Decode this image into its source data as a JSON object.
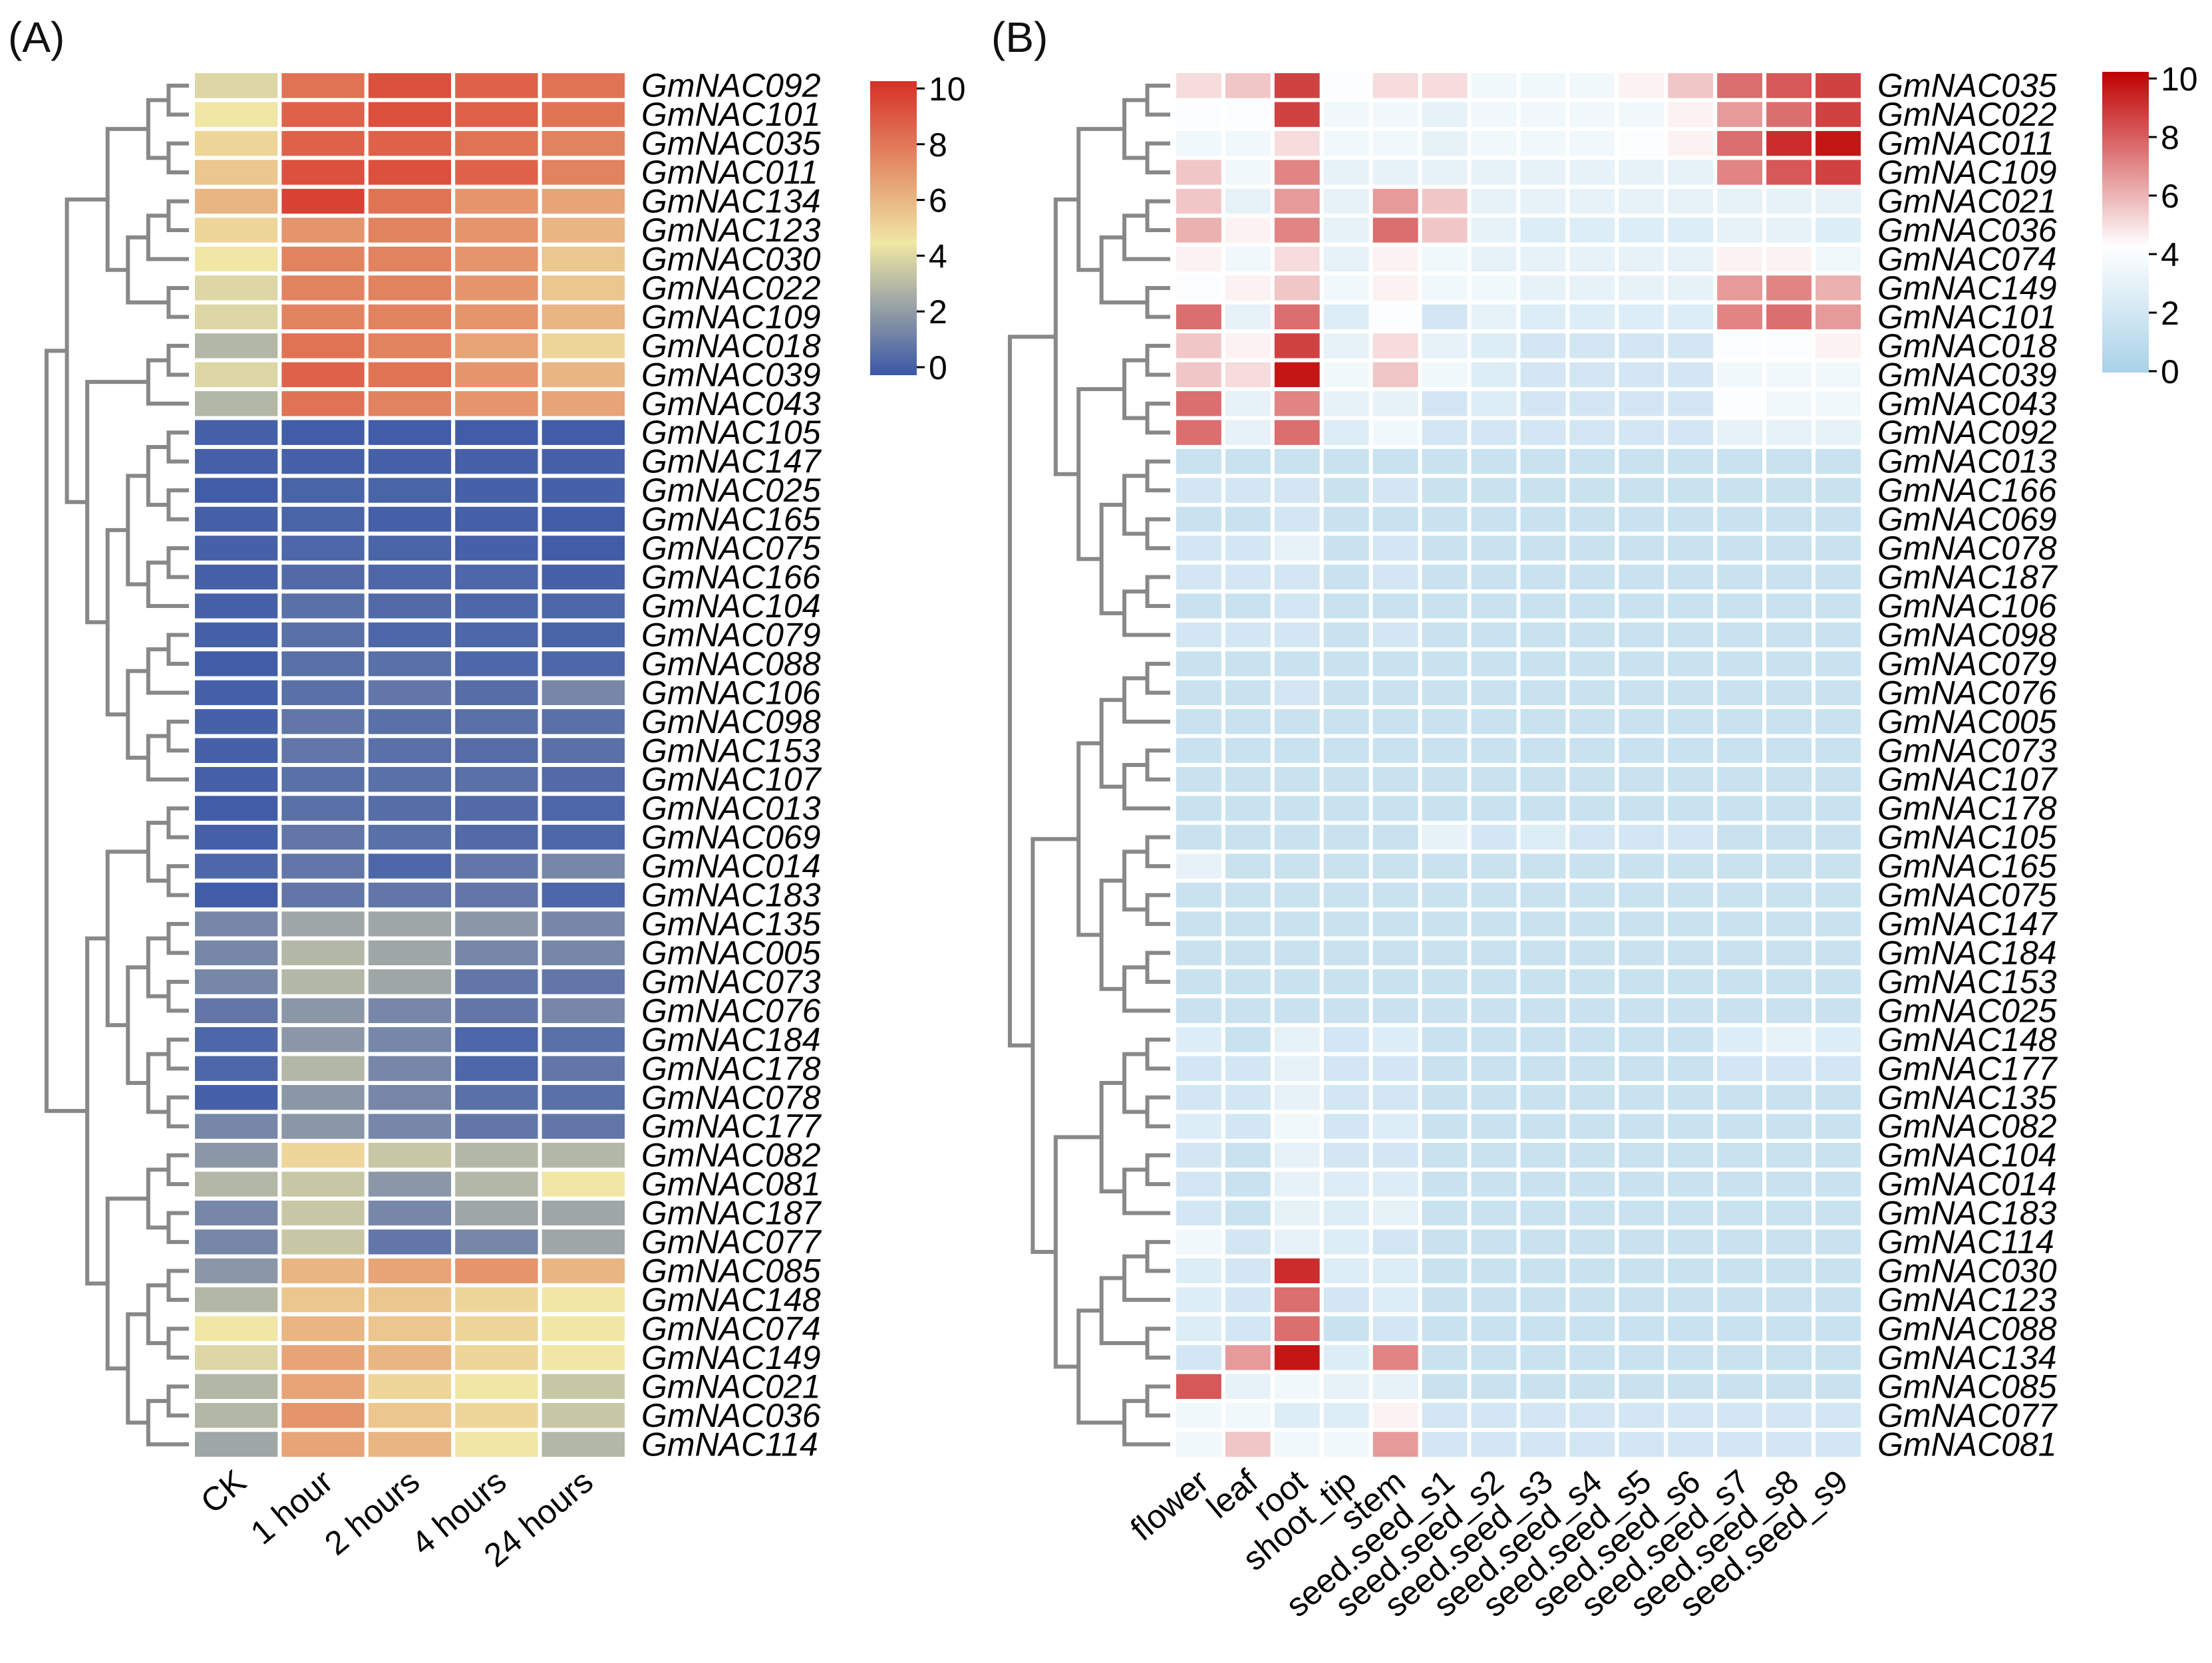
{
  "chart_data": [
    {
      "panel_label": "(A)",
      "type": "heatmap",
      "columns": [
        "CK",
        "1 hour",
        "2 hours",
        "4 hours",
        "24 hours"
      ],
      "rows": [
        "GmNAC092",
        "GmNAC101",
        "GmNAC035",
        "GmNAC011",
        "GmNAC134",
        "GmNAC123",
        "GmNAC030",
        "GmNAC022",
        "GmNAC109",
        "GmNAC018",
        "GmNAC039",
        "GmNAC043",
        "GmNAC105",
        "GmNAC147",
        "GmNAC025",
        "GmNAC165",
        "GmNAC075",
        "GmNAC166",
        "GmNAC104",
        "GmNAC079",
        "GmNAC088",
        "GmNAC106",
        "GmNAC098",
        "GmNAC153",
        "GmNAC107",
        "GmNAC013",
        "GmNAC069",
        "GmNAC014",
        "GmNAC183",
        "GmNAC135",
        "GmNAC005",
        "GmNAC073",
        "GmNAC076",
        "GmNAC184",
        "GmNAC178",
        "GmNAC078",
        "GmNAC177",
        "GmNAC082",
        "GmNAC081",
        "GmNAC187",
        "GmNAC077",
        "GmNAC085",
        "GmNAC148",
        "GmNAC074",
        "GmNAC149",
        "GmNAC021",
        "GmNAC036",
        "GmNAC114"
      ],
      "values": [
        [
          4.0,
          8.0,
          9.0,
          8.5,
          8.0
        ],
        [
          4.5,
          8.5,
          9.0,
          8.5,
          8.0
        ],
        [
          5.0,
          8.5,
          8.5,
          8.0,
          7.5
        ],
        [
          5.5,
          9.0,
          9.0,
          8.5,
          7.5
        ],
        [
          6.0,
          9.5,
          8.0,
          7.0,
          6.5
        ],
        [
          5.0,
          7.0,
          7.5,
          7.0,
          6.0
        ],
        [
          4.5,
          7.5,
          7.5,
          7.0,
          5.5
        ],
        [
          4.0,
          7.5,
          7.5,
          7.0,
          5.5
        ],
        [
          4.0,
          7.5,
          7.5,
          7.0,
          6.0
        ],
        [
          3.0,
          8.0,
          7.5,
          6.5,
          5.0
        ],
        [
          4.0,
          8.5,
          8.0,
          7.0,
          6.0
        ],
        [
          3.0,
          8.0,
          7.5,
          7.0,
          6.5
        ],
        [
          0.3,
          0.2,
          0.2,
          0.2,
          0.2
        ],
        [
          0.3,
          0.3,
          0.3,
          0.3,
          0.3
        ],
        [
          0.2,
          0.4,
          0.4,
          0.3,
          0.3
        ],
        [
          0.3,
          0.4,
          0.3,
          0.3,
          0.2
        ],
        [
          0.3,
          0.5,
          0.4,
          0.3,
          0.2
        ],
        [
          0.3,
          0.6,
          0.5,
          0.5,
          0.3
        ],
        [
          0.3,
          0.8,
          0.6,
          0.5,
          0.5
        ],
        [
          0.3,
          0.8,
          0.5,
          0.5,
          0.4
        ],
        [
          0.2,
          0.8,
          0.8,
          0.5,
          0.5
        ],
        [
          0.3,
          0.8,
          1.0,
          0.7,
          1.5
        ],
        [
          0.3,
          1.0,
          0.8,
          0.8,
          0.8
        ],
        [
          0.3,
          1.0,
          0.8,
          0.7,
          0.8
        ],
        [
          0.3,
          0.8,
          0.8,
          0.8,
          0.6
        ],
        [
          0.2,
          0.8,
          0.7,
          0.6,
          0.5
        ],
        [
          0.3,
          1.0,
          0.8,
          0.6,
          0.5
        ],
        [
          0.5,
          1.0,
          0.5,
          1.0,
          1.5
        ],
        [
          0.2,
          1.0,
          1.0,
          1.0,
          0.5
        ],
        [
          1.5,
          2.5,
          2.5,
          2.0,
          1.5
        ],
        [
          1.5,
          3.0,
          2.5,
          1.5,
          1.5
        ],
        [
          1.5,
          3.0,
          2.5,
          1.0,
          1.0
        ],
        [
          1.0,
          2.0,
          1.5,
          1.0,
          1.5
        ],
        [
          0.5,
          2.0,
          1.5,
          0.5,
          0.8
        ],
        [
          0.5,
          3.0,
          1.5,
          0.5,
          1.0
        ],
        [
          0.3,
          2.0,
          1.5,
          0.8,
          0.8
        ],
        [
          1.5,
          2.0,
          1.5,
          1.0,
          1.0
        ],
        [
          2.0,
          5.0,
          3.5,
          3.0,
          3.0
        ],
        [
          3.0,
          3.5,
          2.0,
          3.0,
          4.5
        ],
        [
          1.5,
          3.5,
          1.5,
          2.5,
          2.5
        ],
        [
          1.5,
          3.5,
          1.0,
          1.5,
          2.5
        ],
        [
          2.0,
          6.0,
          6.5,
          7.0,
          6.0
        ],
        [
          3.0,
          5.5,
          5.5,
          5.0,
          4.5
        ],
        [
          4.5,
          6.0,
          5.5,
          5.0,
          4.5
        ],
        [
          4.0,
          6.5,
          6.0,
          5.0,
          4.5
        ],
        [
          3.0,
          6.5,
          5.0,
          4.5,
          3.5
        ],
        [
          3.0,
          7.0,
          5.5,
          5.0,
          3.5
        ],
        [
          2.5,
          6.5,
          6.0,
          4.5,
          3.0
        ]
      ],
      "colorbar": {
        "min": 0,
        "max": 10,
        "ticks": [
          "10",
          "8",
          "6",
          "4",
          "2",
          "0"
        ],
        "colors": [
          "#3a57a8",
          "#f0e7a4",
          "#d73027"
        ]
      }
    },
    {
      "panel_label": "(B)",
      "type": "heatmap",
      "columns": [
        "flower",
        "leaf",
        "root",
        "shoot_tip",
        "stem",
        "seed.seed_s1",
        "seed.seed_s2",
        "seed.seed_s3",
        "seed.seed_s4",
        "seed.seed_s5",
        "seed.seed_s6",
        "seed.seed_s7",
        "seed.seed_s8",
        "seed.seed_s9"
      ],
      "rows": [
        "GmNAC035",
        "GmNAC022",
        "GmNAC011",
        "GmNAC109",
        "GmNAC021",
        "GmNAC036",
        "GmNAC074",
        "GmNAC149",
        "GmNAC101",
        "GmNAC018",
        "GmNAC039",
        "GmNAC043",
        "GmNAC092",
        "GmNAC013",
        "GmNAC166",
        "GmNAC069",
        "GmNAC078",
        "GmNAC187",
        "GmNAC106",
        "GmNAC098",
        "GmNAC079",
        "GmNAC076",
        "GmNAC005",
        "GmNAC073",
        "GmNAC107",
        "GmNAC178",
        "GmNAC105",
        "GmNAC165",
        "GmNAC075",
        "GmNAC147",
        "GmNAC184",
        "GmNAC153",
        "GmNAC025",
        "GmNAC148",
        "GmNAC177",
        "GmNAC135",
        "GmNAC082",
        "GmNAC104",
        "GmNAC014",
        "GmNAC183",
        "GmNAC114",
        "GmNAC030",
        "GmNAC123",
        "GmNAC088",
        "GmNAC134",
        "GmNAC085",
        "GmNAC077",
        "GmNAC081"
      ],
      "values": [
        [
          5.0,
          5.5,
          8.5,
          4.0,
          5.0,
          5.0,
          3.5,
          3.5,
          3.5,
          4.5,
          5.5,
          7.5,
          8.0,
          8.5
        ],
        [
          4.0,
          4.0,
          8.5,
          3.5,
          3.5,
          3.0,
          3.5,
          3.5,
          3.5,
          3.5,
          4.5,
          6.5,
          7.5,
          8.5
        ],
        [
          3.5,
          3.5,
          5.0,
          3.5,
          3.5,
          3.0,
          3.5,
          3.5,
          3.5,
          4.0,
          4.5,
          7.5,
          9.0,
          9.5
        ],
        [
          5.5,
          3.5,
          7.0,
          3.0,
          3.0,
          3.0,
          3.0,
          3.0,
          3.0,
          3.0,
          3.0,
          7.0,
          8.0,
          8.5
        ],
        [
          5.5,
          3.0,
          6.5,
          3.0,
          6.5,
          5.5,
          3.0,
          3.0,
          3.0,
          3.0,
          3.0,
          3.0,
          3.0,
          3.0
        ],
        [
          6.0,
          4.5,
          7.0,
          3.0,
          7.5,
          5.5,
          3.0,
          2.5,
          2.5,
          2.5,
          2.5,
          3.0,
          3.0,
          2.5
        ],
        [
          4.5,
          3.5,
          5.0,
          3.0,
          4.5,
          3.5,
          3.0,
          3.0,
          3.0,
          3.0,
          3.0,
          4.5,
          4.5,
          3.5
        ],
        [
          4.0,
          4.5,
          5.5,
          3.5,
          4.5,
          3.5,
          3.5,
          3.0,
          3.0,
          3.0,
          3.0,
          6.5,
          7.0,
          6.0
        ],
        [
          7.5,
          3.0,
          7.5,
          2.5,
          4.0,
          2.0,
          3.0,
          2.5,
          2.5,
          2.5,
          2.5,
          7.0,
          7.5,
          6.5
        ],
        [
          5.5,
          4.5,
          8.5,
          3.0,
          5.0,
          3.0,
          2.5,
          2.0,
          2.0,
          2.0,
          2.0,
          4.0,
          4.0,
          4.5
        ],
        [
          5.5,
          5.0,
          9.5,
          3.5,
          5.5,
          3.5,
          2.5,
          2.0,
          2.0,
          2.0,
          2.0,
          3.5,
          3.5,
          3.5
        ],
        [
          7.5,
          3.0,
          7.0,
          3.0,
          3.0,
          2.0,
          2.5,
          2.0,
          2.0,
          2.0,
          2.0,
          4.0,
          3.5,
          3.5
        ],
        [
          7.5,
          3.0,
          7.5,
          2.5,
          3.5,
          2.0,
          2.0,
          2.0,
          2.0,
          2.0,
          2.0,
          3.0,
          3.0,
          3.0
        ],
        [
          1.5,
          1.5,
          1.5,
          1.5,
          1.5,
          1.5,
          1.5,
          1.5,
          1.5,
          1.5,
          1.5,
          1.5,
          1.5,
          1.5
        ],
        [
          2.0,
          2.0,
          2.0,
          1.5,
          2.0,
          1.5,
          1.5,
          1.5,
          1.5,
          1.5,
          1.5,
          1.5,
          1.5,
          1.5
        ],
        [
          1.5,
          1.5,
          2.0,
          1.5,
          1.5,
          1.5,
          1.5,
          1.5,
          1.5,
          1.5,
          1.5,
          1.5,
          1.5,
          1.5
        ],
        [
          2.0,
          2.0,
          3.0,
          1.5,
          2.0,
          1.5,
          1.5,
          1.5,
          1.5,
          1.5,
          1.5,
          1.5,
          1.5,
          1.5
        ],
        [
          2.0,
          2.0,
          2.0,
          1.5,
          2.0,
          1.5,
          1.5,
          1.5,
          1.5,
          1.5,
          1.5,
          1.5,
          1.5,
          1.5
        ],
        [
          1.5,
          1.5,
          2.0,
          1.5,
          1.5,
          1.5,
          1.5,
          1.5,
          1.5,
          1.5,
          1.5,
          1.5,
          1.5,
          1.5
        ],
        [
          2.0,
          2.0,
          2.0,
          1.5,
          2.0,
          1.5,
          1.5,
          1.5,
          1.5,
          1.5,
          1.5,
          1.5,
          1.5,
          1.5
        ],
        [
          1.5,
          1.5,
          1.5,
          1.5,
          1.5,
          1.5,
          1.5,
          1.5,
          1.5,
          1.5,
          1.5,
          1.5,
          1.5,
          1.5
        ],
        [
          1.5,
          1.5,
          2.0,
          1.5,
          1.5,
          1.5,
          1.5,
          1.5,
          1.5,
          1.5,
          1.5,
          1.5,
          1.5,
          1.5
        ],
        [
          1.5,
          1.5,
          1.5,
          1.5,
          1.5,
          1.5,
          1.5,
          1.5,
          1.5,
          1.5,
          1.5,
          1.5,
          1.5,
          1.5
        ],
        [
          1.5,
          1.5,
          1.5,
          1.5,
          1.5,
          1.5,
          1.5,
          1.5,
          1.5,
          1.5,
          1.5,
          1.5,
          1.5,
          1.5
        ],
        [
          1.5,
          1.5,
          1.5,
          1.5,
          1.5,
          1.5,
          1.5,
          1.5,
          1.5,
          1.5,
          1.5,
          1.5,
          1.5,
          1.5
        ],
        [
          1.5,
          1.5,
          1.5,
          1.5,
          1.5,
          1.5,
          1.5,
          1.5,
          1.5,
          1.5,
          1.5,
          1.5,
          1.5,
          1.5
        ],
        [
          1.5,
          1.5,
          1.5,
          1.5,
          1.5,
          3.0,
          2.0,
          2.5,
          2.0,
          2.0,
          2.0,
          1.5,
          1.5,
          1.5
        ],
        [
          3.0,
          1.5,
          1.5,
          1.5,
          1.5,
          1.5,
          1.5,
          1.5,
          1.5,
          1.5,
          1.5,
          1.5,
          1.5,
          1.5
        ],
        [
          1.5,
          1.5,
          1.5,
          1.5,
          1.5,
          1.5,
          1.5,
          1.5,
          1.5,
          1.5,
          1.5,
          1.5,
          1.5,
          1.5
        ],
        [
          1.5,
          1.5,
          1.5,
          1.5,
          1.5,
          1.5,
          1.5,
          1.5,
          1.5,
          1.5,
          1.5,
          1.5,
          1.5,
          1.5
        ],
        [
          1.5,
          1.5,
          1.5,
          1.5,
          1.5,
          1.5,
          1.5,
          1.5,
          1.5,
          1.5,
          1.5,
          1.5,
          1.5,
          1.5
        ],
        [
          1.5,
          1.5,
          1.5,
          1.5,
          1.5,
          1.5,
          1.5,
          1.5,
          1.5,
          1.5,
          1.5,
          1.5,
          1.5,
          1.5
        ],
        [
          1.5,
          1.5,
          1.5,
          1.5,
          1.5,
          1.5,
          1.5,
          1.5,
          1.5,
          1.5,
          1.5,
          1.5,
          1.5,
          1.5
        ],
        [
          2.5,
          1.5,
          3.0,
          2.0,
          2.5,
          1.5,
          1.5,
          1.5,
          1.5,
          1.5,
          1.5,
          2.5,
          3.0,
          2.5
        ],
        [
          2.0,
          2.0,
          3.0,
          2.0,
          2.0,
          1.5,
          1.5,
          1.5,
          1.5,
          1.5,
          1.5,
          2.0,
          2.0,
          2.0
        ],
        [
          2.0,
          2.0,
          3.0,
          2.0,
          2.0,
          1.5,
          1.5,
          1.5,
          1.5,
          1.5,
          1.5,
          1.5,
          1.5,
          1.5
        ],
        [
          2.5,
          2.0,
          3.5,
          2.0,
          2.5,
          1.5,
          1.5,
          1.5,
          1.5,
          1.5,
          1.5,
          1.5,
          1.5,
          1.5
        ],
        [
          2.0,
          1.5,
          3.0,
          2.0,
          2.0,
          1.5,
          1.5,
          1.5,
          1.5,
          1.5,
          1.5,
          1.5,
          1.5,
          1.5
        ],
        [
          2.0,
          1.5,
          3.0,
          2.5,
          2.5,
          1.5,
          1.5,
          1.5,
          1.5,
          1.5,
          1.5,
          1.5,
          1.5,
          1.5
        ],
        [
          2.0,
          1.5,
          3.0,
          2.5,
          3.0,
          1.5,
          1.5,
          1.5,
          1.5,
          1.5,
          1.5,
          1.5,
          1.5,
          1.5
        ],
        [
          3.5,
          2.0,
          3.0,
          2.5,
          2.0,
          1.5,
          1.5,
          1.5,
          1.5,
          1.5,
          1.5,
          1.5,
          1.5,
          1.5
        ],
        [
          2.5,
          2.0,
          9.0,
          2.5,
          2.5,
          1.5,
          1.5,
          1.5,
          1.5,
          1.5,
          1.5,
          1.5,
          1.5,
          1.5
        ],
        [
          2.5,
          2.0,
          7.5,
          2.0,
          2.5,
          1.5,
          1.5,
          1.5,
          1.5,
          1.5,
          1.5,
          1.5,
          1.5,
          1.5
        ],
        [
          2.5,
          2.0,
          7.5,
          1.5,
          2.0,
          1.5,
          1.5,
          1.5,
          1.5,
          1.5,
          1.5,
          1.5,
          1.5,
          1.5
        ],
        [
          2.0,
          6.5,
          9.5,
          2.5,
          7.0,
          1.5,
          1.5,
          1.5,
          1.5,
          1.5,
          1.5,
          1.5,
          1.5,
          1.5
        ],
        [
          8.0,
          3.0,
          3.5,
          3.0,
          3.0,
          1.5,
          1.5,
          1.5,
          1.5,
          1.5,
          1.5,
          1.5,
          1.5,
          1.5
        ],
        [
          3.5,
          3.5,
          2.5,
          2.5,
          4.5,
          2.0,
          2.0,
          2.0,
          2.0,
          2.0,
          2.0,
          2.0,
          2.0,
          2.0
        ],
        [
          3.5,
          5.5,
          3.5,
          3.5,
          6.5,
          2.0,
          2.0,
          2.0,
          2.0,
          2.0,
          2.0,
          2.0,
          2.0,
          2.0
        ]
      ],
      "colorbar": {
        "min": 0,
        "max": 10,
        "ticks": [
          "10",
          "8",
          "6",
          "4",
          "2",
          "0"
        ],
        "colors": [
          "#a9d2e8",
          "#ffffff",
          "#c00000"
        ]
      }
    }
  ]
}
